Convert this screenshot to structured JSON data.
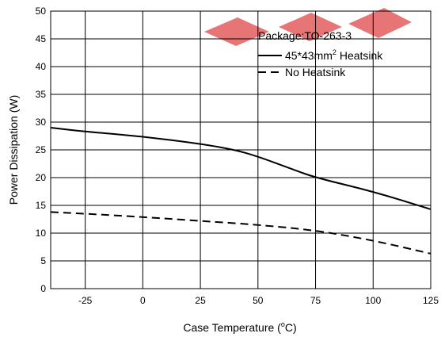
{
  "chart_data": {
    "type": "line",
    "xlabel_main": "Case Temperature (",
    "xlabel_sup": "o",
    "xlabel_tail": "C)",
    "ylabel": "Power Dissipation (W)",
    "xlim": [
      -40,
      125
    ],
    "ylim": [
      0,
      50
    ],
    "x_ticks": [
      -25,
      0,
      25,
      50,
      75,
      100,
      125
    ],
    "y_ticks": [
      0,
      5,
      10,
      15,
      20,
      25,
      30,
      35,
      40,
      45,
      50
    ],
    "grid": true,
    "legend_title": "Package:TO-263-3",
    "legend_placement": "top-right",
    "series": [
      {
        "name_main": "45*43mm",
        "name_sup": "2",
        "name_tail": " Heatsink",
        "style": "solid",
        "x": [
          -40,
          -25,
          0,
          25,
          40,
          50,
          65,
          75,
          100,
          125
        ],
        "values": [
          29,
          28.3,
          27.4,
          26.1,
          25,
          23.8,
          21.5,
          20,
          17.5,
          14.3
        ]
      },
      {
        "name": "No Heatsink",
        "style": "dashed",
        "x": [
          -40,
          -25,
          0,
          25,
          50,
          75,
          100,
          125
        ],
        "values": [
          13.8,
          13.5,
          12.9,
          12.2,
          11.5,
          10.5,
          8.7,
          6.3
        ]
      }
    ]
  },
  "colors": {
    "line": "#000000",
    "grid": "#000000",
    "watermark": "#e04040"
  }
}
